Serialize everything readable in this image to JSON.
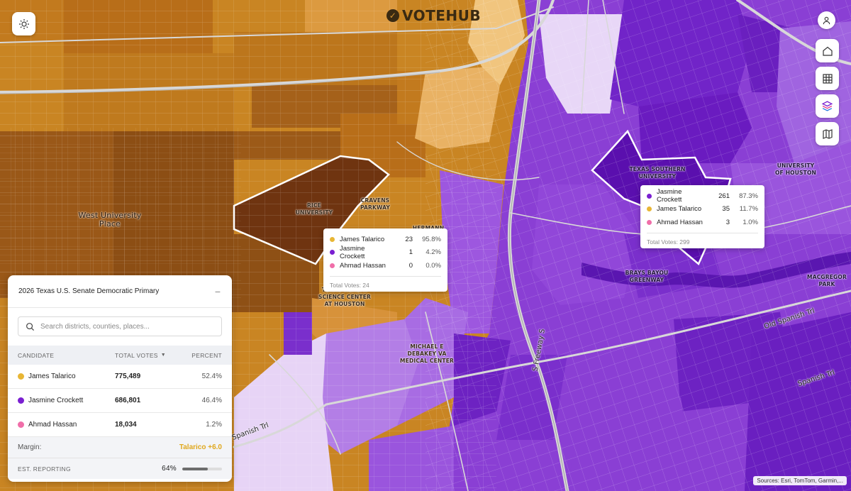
{
  "logo": {
    "text": "VOTEHUB",
    "check_glyph": "✓",
    "icon": "check-circle-icon"
  },
  "colors": {
    "talarico": "#e8b635",
    "crockett": "#7a1fd1",
    "hassan": "#f06ea9",
    "margin_accent": "#e0a81e"
  },
  "map_labels": {
    "west_university": "West University\nPlace",
    "rice": "RICE\nUNIVERSITY",
    "cravens": "CRAVENS\nPARKWAY",
    "hermann": "HERMANN",
    "texas_southern": "TEXAS SOUTHERN\nUNIVERSITY",
    "uh": "UNIVERSITY\nOF HOUSTON",
    "brays": "BRAYS BAYOU\nGREENWAY",
    "macgregor": "MACGREGOR\nPARK",
    "science_center": "TEXAS HEALTH\nSCIENCE CENTER\nAT HOUSTON",
    "debakey": "MICHAEL E\nDEBAKEY VA\nMEDICAL CENTER",
    "old_spanish_trl": "Old Spanish Trl",
    "spanish_trl_right": "Spanish Trl",
    "spanish_trl_left": "Spanish Trl",
    "s_freeway": "S Freeway S"
  },
  "tooltip_rice": {
    "rows": [
      {
        "name": "James Talarico",
        "votes": "23",
        "pct": "95.8%",
        "color": "#e8b635"
      },
      {
        "name": "Jasmine Crockett",
        "votes": "1",
        "pct": "4.2%",
        "color": "#7a1fd1"
      },
      {
        "name": "Ahmad Hassan",
        "votes": "0",
        "pct": "0.0%",
        "color": "#f06ea9"
      }
    ],
    "total": "Total Votes: 24"
  },
  "tooltip_tsu": {
    "rows": [
      {
        "name": "Jasmine Crockett",
        "votes": "261",
        "pct": "87.3%",
        "color": "#7a1fd1"
      },
      {
        "name": "James Talarico",
        "votes": "35",
        "pct": "11.7%",
        "color": "#e8b635"
      },
      {
        "name": "Ahmad Hassan",
        "votes": "3",
        "pct": "1.0%",
        "color": "#f06ea9"
      }
    ],
    "total": "Total Votes: 299"
  },
  "panel": {
    "title": "2026 Texas U.S. Senate Democratic Primary",
    "collapse_glyph": "−",
    "search_placeholder": "Search districts, counties, places...",
    "headers": {
      "candidate": "CANDIDATE",
      "votes": "TOTAL VOTES",
      "percent": "PERCENT",
      "sort_glyph": "▼"
    },
    "rows": [
      {
        "name": "James Talarico",
        "votes": "775,489",
        "pct": "52.4%",
        "color": "#e8b635"
      },
      {
        "name": "Jasmine Crockett",
        "votes": "686,801",
        "pct": "46.4%",
        "color": "#7a1fd1"
      },
      {
        "name": "Ahmad Hassan",
        "votes": "18,034",
        "pct": "1.2%",
        "color": "#f06ea9"
      }
    ],
    "margin_label": "Margin:",
    "margin_value": "Talarico +6.0",
    "reporting_label": "EST. REPORTING",
    "reporting_value": "64%",
    "reporting_fraction": 0.64
  },
  "controls": {
    "theme": "sun-icon",
    "account": "user-icon",
    "home": "home-icon",
    "grid": "grid-icon",
    "layers": "layers-icon",
    "basemap": "map-icon"
  },
  "attribution": "Sources: Esri, TomTom, Garmin,..."
}
